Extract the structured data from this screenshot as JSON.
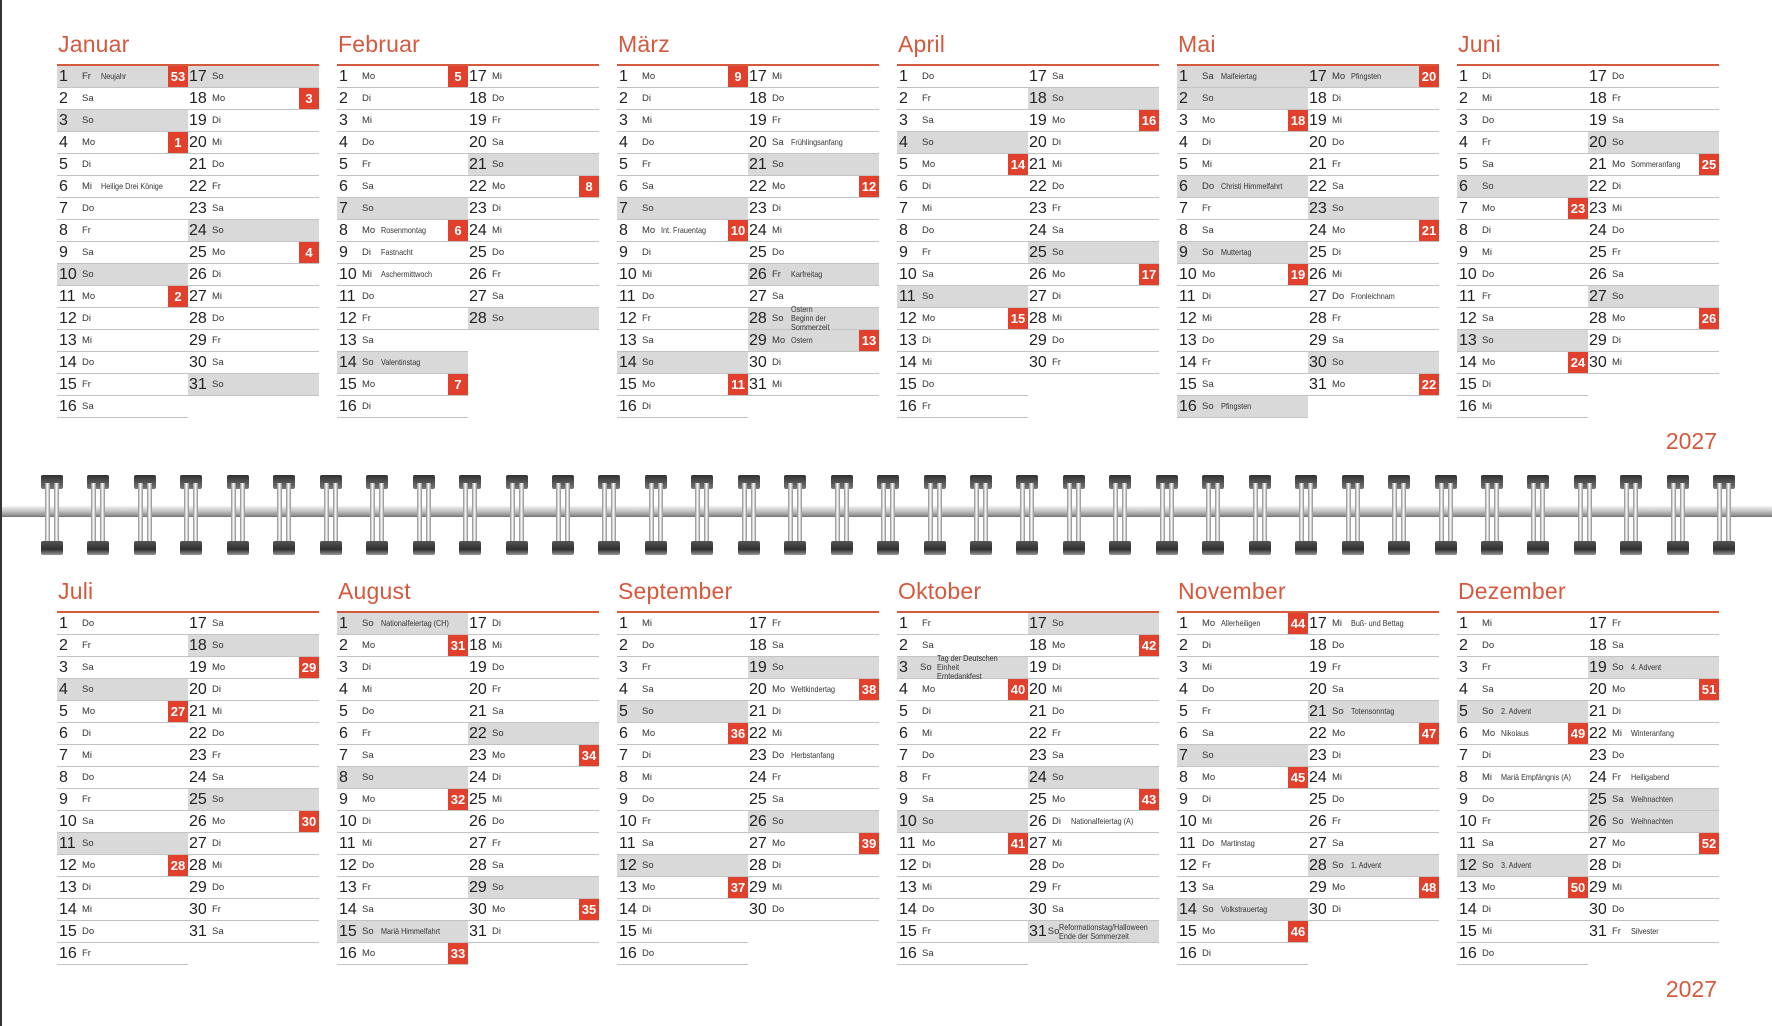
{
  "year": "2027",
  "colors": {
    "accent": "#d5593d",
    "week_badge": "#e0402c",
    "shade": "#d9d9d9"
  },
  "months": [
    {
      "name": "Januar",
      "weekdays": [
        "Fr",
        "Sa",
        "So",
        "Mo",
        "Di",
        "Mi",
        "Do",
        "Fr",
        "Sa",
        "So",
        "Mo",
        "Di",
        "Mi",
        "Do",
        "Fr",
        "Sa",
        "So",
        "Mo",
        "Di",
        "Mi",
        "Do",
        "Fr",
        "Sa",
        "So",
        "Mo",
        "Di",
        "Mi",
        "Do",
        "Fr",
        "Sa",
        "So"
      ],
      "holidays": {
        "1": "Neujahr",
        "6": "Heilige Drei Könige"
      },
      "weeks": {
        "1": "53",
        "4": "1",
        "11": "2",
        "18": "3",
        "25": "4"
      },
      "shaded": [
        1,
        3,
        10,
        17,
        24,
        31
      ]
    },
    {
      "name": "Februar",
      "weekdays": [
        "Mo",
        "Di",
        "Mi",
        "Do",
        "Fr",
        "Sa",
        "So",
        "Mo",
        "Di",
        "Mi",
        "Do",
        "Fr",
        "Sa",
        "So",
        "Mo",
        "Di",
        "Mi",
        "Do",
        "Fr",
        "Sa",
        "So",
        "Mo",
        "Di",
        "Mi",
        "Do",
        "Fr",
        "Sa",
        "So"
      ],
      "holidays": {
        "8": "Rosenmontag",
        "9": "Fastnacht",
        "10": "Aschermittwoch",
        "14": "Valentinstag"
      },
      "weeks": {
        "1": "5",
        "8": "6",
        "15": "7",
        "22": "8"
      },
      "shaded": [
        7,
        14,
        21,
        28
      ]
    },
    {
      "name": "März",
      "weekdays": [
        "Mo",
        "Di",
        "Mi",
        "Do",
        "Fr",
        "Sa",
        "So",
        "Mo",
        "Di",
        "Mi",
        "Do",
        "Fr",
        "Sa",
        "So",
        "Mo",
        "Di",
        "Mi",
        "Do",
        "Fr",
        "Sa",
        "So",
        "Mo",
        "Di",
        "Mi",
        "Do",
        "Fr",
        "Sa",
        "So",
        "Mo",
        "Di",
        "Mi"
      ],
      "holidays": {
        "8": "Int. Frauentag",
        "20": "Frühlingsanfang",
        "26": "Karfreitag",
        "28": "Ostern\nBeginn der Sommerzeit",
        "29": "Ostern"
      },
      "weeks": {
        "1": "9",
        "8": "10",
        "15": "11",
        "22": "12",
        "29": "13"
      },
      "shaded": [
        7,
        14,
        21,
        26,
        28,
        29
      ]
    },
    {
      "name": "April",
      "weekdays": [
        "Do",
        "Fr",
        "Sa",
        "So",
        "Mo",
        "Di",
        "Mi",
        "Do",
        "Fr",
        "Sa",
        "So",
        "Mo",
        "Di",
        "Mi",
        "Do",
        "Fr",
        "Sa",
        "So",
        "Mo",
        "Di",
        "Mi",
        "Do",
        "Fr",
        "Sa",
        "So",
        "Mo",
        "Di",
        "Mi",
        "Do",
        "Fr"
      ],
      "holidays": {},
      "weeks": {
        "5": "14",
        "12": "15",
        "19": "16",
        "26": "17"
      },
      "shaded": [
        4,
        11,
        18,
        25
      ]
    },
    {
      "name": "Mai",
      "weekdays": [
        "Sa",
        "So",
        "Mo",
        "Di",
        "Mi",
        "Do",
        "Fr",
        "Sa",
        "So",
        "Mo",
        "Di",
        "Mi",
        "Do",
        "Fr",
        "Sa",
        "So",
        "Mo",
        "Di",
        "Mi",
        "Do",
        "Fr",
        "Sa",
        "So",
        "Mo",
        "Di",
        "Mi",
        "Do",
        "Fr",
        "Sa",
        "So",
        "Mo"
      ],
      "holidays": {
        "1": "Maifeiertag",
        "6": "Christi Himmelfahrt",
        "9": "Muttertag",
        "16": "Pfingsten",
        "17": "Pfingsten",
        "27": "Fronleichnam"
      },
      "weeks": {
        "3": "18",
        "10": "19",
        "17": "20",
        "24": "21",
        "31": "22"
      },
      "shaded": [
        1,
        2,
        6,
        9,
        16,
        17,
        23,
        30
      ]
    },
    {
      "name": "Juni",
      "weekdays": [
        "Di",
        "Mi",
        "Do",
        "Fr",
        "Sa",
        "So",
        "Mo",
        "Di",
        "Mi",
        "Do",
        "Fr",
        "Sa",
        "So",
        "Mo",
        "Di",
        "Mi",
        "Do",
        "Fr",
        "Sa",
        "So",
        "Mo",
        "Di",
        "Mi",
        "Do",
        "Fr",
        "Sa",
        "So",
        "Mo",
        "Di",
        "Mi"
      ],
      "holidays": {
        "21": "Sommeranfang"
      },
      "weeks": {
        "7": "23",
        "14": "24",
        "21": "25",
        "28": "26"
      },
      "shaded": [
        6,
        13,
        20,
        27
      ]
    },
    {
      "name": "Juli",
      "weekdays": [
        "Do",
        "Fr",
        "Sa",
        "So",
        "Mo",
        "Di",
        "Mi",
        "Do",
        "Fr",
        "Sa",
        "So",
        "Mo",
        "Di",
        "Mi",
        "Do",
        "Fr",
        "Sa",
        "So",
        "Mo",
        "Di",
        "Mi",
        "Do",
        "Fr",
        "Sa",
        "So",
        "Mo",
        "Di",
        "Mi",
        "Do",
        "Fr",
        "Sa"
      ],
      "holidays": {},
      "weeks": {
        "5": "27",
        "12": "28",
        "19": "29",
        "26": "30"
      },
      "shaded": [
        4,
        11,
        18,
        25
      ]
    },
    {
      "name": "August",
      "weekdays": [
        "So",
        "Mo",
        "Di",
        "Mi",
        "Do",
        "Fr",
        "Sa",
        "So",
        "Mo",
        "Di",
        "Mi",
        "Do",
        "Fr",
        "Sa",
        "So",
        "Mo",
        "Di",
        "Mi",
        "Do",
        "Fr",
        "Sa",
        "So",
        "Mo",
        "Di",
        "Mi",
        "Do",
        "Fr",
        "Sa",
        "So",
        "Mo",
        "Di"
      ],
      "holidays": {
        "1": "Nationalfeiertag (CH)",
        "15": "Mariä Himmelfahrt"
      },
      "weeks": {
        "2": "31",
        "9": "32",
        "16": "33",
        "23": "34",
        "30": "35"
      },
      "shaded": [
        1,
        8,
        15,
        22,
        29
      ]
    },
    {
      "name": "September",
      "weekdays": [
        "Mi",
        "Do",
        "Fr",
        "Sa",
        "So",
        "Mo",
        "Di",
        "Mi",
        "Do",
        "Fr",
        "Sa",
        "So",
        "Mo",
        "Di",
        "Mi",
        "Do",
        "Fr",
        "Sa",
        "So",
        "Mo",
        "Di",
        "Mi",
        "Do",
        "Fr",
        "Sa",
        "So",
        "Mo",
        "Di",
        "Mi",
        "Do"
      ],
      "holidays": {
        "20": "Weltkindertag",
        "23": "Herbstanfang"
      },
      "weeks": {
        "6": "36",
        "13": "37",
        "20": "38",
        "27": "39"
      },
      "shaded": [
        5,
        12,
        19,
        26
      ]
    },
    {
      "name": "Oktober",
      "weekdays": [
        "Fr",
        "Sa",
        "So",
        "Mo",
        "Di",
        "Mi",
        "Do",
        "Fr",
        "Sa",
        "So",
        "Mo",
        "Di",
        "Mi",
        "Do",
        "Fr",
        "Sa",
        "So",
        "Mo",
        "Di",
        "Mi",
        "Do",
        "Fr",
        "Sa",
        "So",
        "Mo",
        "Di",
        "Mi",
        "Do",
        "Fr",
        "Sa",
        "So"
      ],
      "holidays": {
        "3": "Tag der Deutschen Einheit\nErntedankfest",
        "26": "Nationalfeiertag (A)",
        "31": "Reformationstag/Halloween\nEnde der Sommerzeit"
      },
      "weeks": {
        "4": "40",
        "11": "41",
        "18": "42",
        "25": "43"
      },
      "shaded": [
        3,
        10,
        17,
        24,
        31
      ]
    },
    {
      "name": "November",
      "weekdays": [
        "Mo",
        "Di",
        "Mi",
        "Do",
        "Fr",
        "Sa",
        "So",
        "Mo",
        "Di",
        "Mi",
        "Do",
        "Fr",
        "Sa",
        "So",
        "Mo",
        "Di",
        "Mi",
        "Do",
        "Fr",
        "Sa",
        "So",
        "Mo",
        "Di",
        "Mi",
        "Do",
        "Fr",
        "Sa",
        "So",
        "Mo",
        "Di"
      ],
      "holidays": {
        "1": "Allerheiligen",
        "11": "Martinstag",
        "14": "Volkstrauertag",
        "17": "Buß- und Bettag",
        "21": "Totensonntag",
        "28": "1. Advent"
      },
      "weeks": {
        "1": "44",
        "8": "45",
        "15": "46",
        "22": "47",
        "29": "48"
      },
      "shaded": [
        7,
        14,
        21,
        28
      ]
    },
    {
      "name": "Dezember",
      "weekdays": [
        "Mi",
        "Do",
        "Fr",
        "Sa",
        "So",
        "Mo",
        "Di",
        "Mi",
        "Do",
        "Fr",
        "Sa",
        "So",
        "Mo",
        "Di",
        "Mi",
        "Do",
        "Fr",
        "Sa",
        "So",
        "Mo",
        "Di",
        "Mi",
        "Do",
        "Fr",
        "Sa",
        "So",
        "Mo",
        "Di",
        "Mi",
        "Do",
        "Fr"
      ],
      "holidays": {
        "5": "2. Advent",
        "6": "Nikolaus",
        "8": "Mariä Empfängnis (A)",
        "12": "3. Advent",
        "19": "4. Advent",
        "22": "Winteranfang",
        "24": "Heiligabend",
        "25": "Weihnachten",
        "26": "Weihnachten",
        "31": "Silvester"
      },
      "weeks": {
        "6": "49",
        "13": "50",
        "20": "51",
        "27": "52"
      },
      "shaded": [
        5,
        12,
        19,
        25,
        26
      ]
    }
  ]
}
